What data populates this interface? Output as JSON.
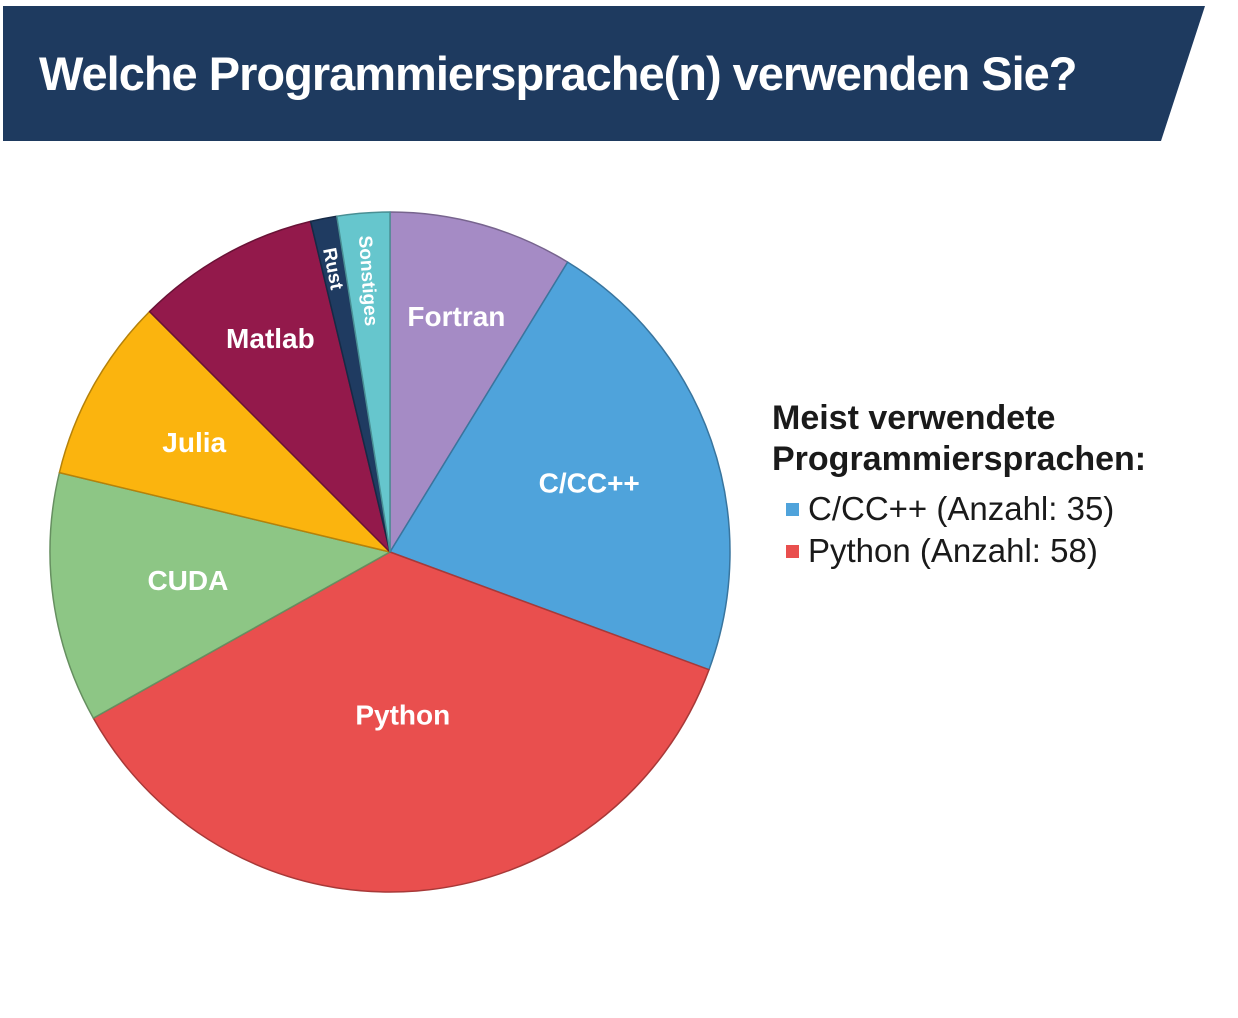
{
  "header": {
    "title": "Welche Programmiersprache(n) verwenden Sie?",
    "bg_color": "#1E3A5F",
    "text_color": "#FFFFFF"
  },
  "chart_data": {
    "type": "pie",
    "start_angle_deg": 0,
    "direction": "clockwise",
    "total": 160,
    "label_color": "#FFFFFF",
    "segments": [
      {
        "label": "Fortran",
        "value": 14,
        "color": "#A58BC5",
        "label_r": 0.72,
        "label_rot": 0,
        "label_size": 28
      },
      {
        "label": "C/CC++",
        "value": 35,
        "color": "#4FA3DB",
        "label_r": 0.62,
        "label_rot": 0,
        "label_size": 28
      },
      {
        "label": "Python",
        "value": 58,
        "color": "#E94F4E",
        "label_r": 0.48,
        "label_rot": 0,
        "label_size": 28
      },
      {
        "label": "CUDA",
        "value": 19,
        "color": "#8DC685",
        "label_r": 0.6,
        "label_rot": 0,
        "label_size": 28
      },
      {
        "label": "Julia",
        "value": 14,
        "color": "#FBB40E",
        "label_r": 0.66,
        "label_rot": 0,
        "label_size": 28
      },
      {
        "label": "Matlab",
        "value": 14,
        "color": "#93194B",
        "label_r": 0.72,
        "label_rot": 0,
        "label_size": 28
      },
      {
        "label": "Rust",
        "value": 2,
        "color": "#1F3B61",
        "label_r": 0.85,
        "label_rot": 79,
        "label_size": 19
      },
      {
        "label": "Sonstiges",
        "value": 4,
        "color": "#66C6CD",
        "label_r": 0.8,
        "label_rot": 86,
        "label_size": 19
      }
    ]
  },
  "legend": {
    "title_lines": [
      "Meist verwendete",
      "Programmiersprachen:"
    ],
    "items": [
      {
        "label": "C/CC++ (Anzahl: 35)",
        "color": "#4FA3DB"
      },
      {
        "label": "Python (Anzahl: 58)",
        "color": "#E94F4E"
      }
    ]
  }
}
